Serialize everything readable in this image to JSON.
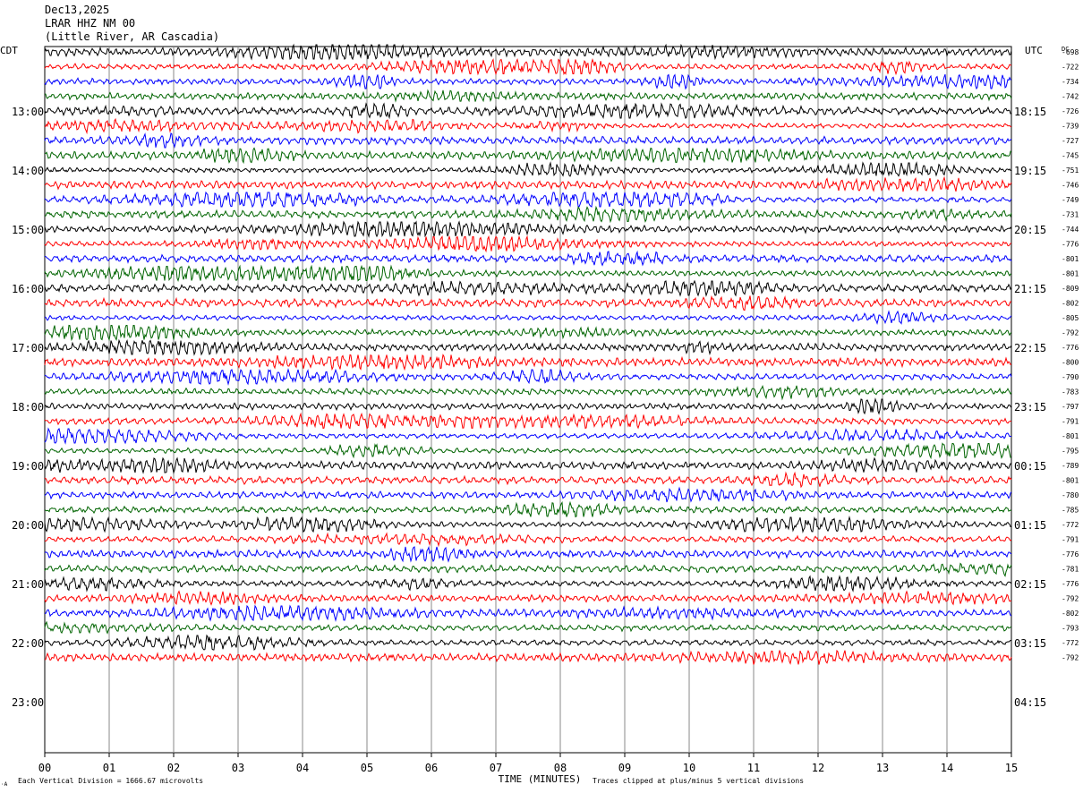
{
  "header": {
    "date": "Dec13,2025",
    "station": "LRAR HHZ NM 00",
    "location": "(Little River, AR Cascadia)"
  },
  "chart_data": {
    "type": "line",
    "left_timezone": "CDT",
    "right_timezone": "UTC",
    "dc_label": "DC",
    "xlabel": "TIME (MINUTES)",
    "xlim": [
      0,
      15
    ],
    "x_ticks": [
      "00",
      "01",
      "02",
      "03",
      "04",
      "05",
      "06",
      "07",
      "08",
      "09",
      "10",
      "11",
      "12",
      "13",
      "14",
      "15"
    ],
    "left_hour_labels": [
      "13:00",
      "14:00",
      "15:00",
      "16:00",
      "17:00",
      "18:00",
      "19:00",
      "20:00",
      "21:00",
      "22:00",
      "23:00"
    ],
    "right_hour_labels": [
      "18:15",
      "19:15",
      "20:15",
      "21:15",
      "22:15",
      "23:15",
      "00:15",
      "01:15",
      "02:15",
      "03:15",
      "04:15"
    ],
    "trace_colors": [
      "#000000",
      "#ff0000",
      "#0000ff",
      "#006400"
    ],
    "dc_offsets": [
      "-698",
      "-722",
      "-734",
      "-742",
      "-726",
      "-739",
      "-727",
      "-745",
      "-751",
      "-746",
      "-749",
      "-731",
      "-744",
      "-776",
      "-801",
      "-801",
      "-809",
      "-802",
      "-805",
      "-792",
      "-776",
      "-800",
      "-790",
      "-783",
      "-797",
      "-791",
      "-801",
      "-795",
      "-789",
      "-801",
      "-780",
      "-785",
      "-772",
      "-791",
      "-776",
      "-781",
      "-776",
      "-792",
      "-802",
      "-793",
      "-772",
      "-792"
    ],
    "footer_left": "Each Vertical Division = 1666.67 microvolts",
    "footer_right": "Traces clipped at plus/minus 5 vertical divisions",
    "corner_mark": "·A"
  }
}
